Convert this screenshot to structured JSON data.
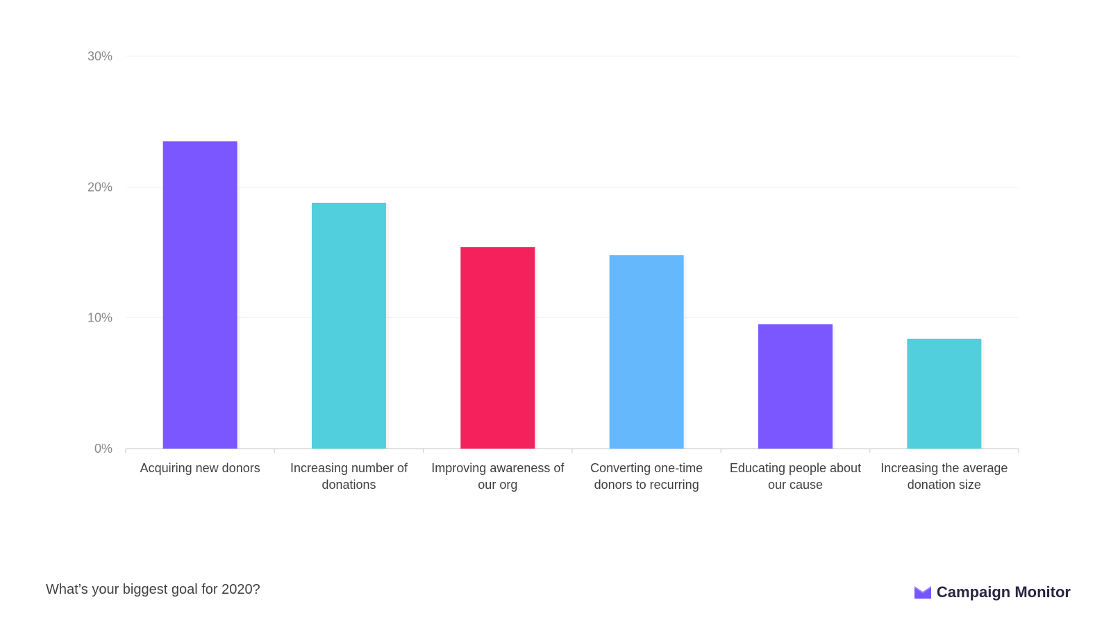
{
  "chart_data": {
    "type": "bar",
    "categories": [
      "Acquiring new donors",
      "Increasing number of donations",
      "Improving awareness of our org",
      "Converting one-time donors to recurring",
      "Educating people about our cause",
      "Increasing the average donation size"
    ],
    "category_label_lines": [
      [
        "Acquiring new donors"
      ],
      [
        "Increasing number of",
        "donations"
      ],
      [
        "Improving awareness of",
        "our org"
      ],
      [
        "Converting one-time",
        "donors to recurring"
      ],
      [
        "Educating people about",
        "our cause"
      ],
      [
        "Increasing the average",
        "donation size"
      ]
    ],
    "values": [
      23.5,
      18.8,
      15.4,
      14.8,
      9.5,
      8.4
    ],
    "bar_colors": [
      "#7a57ff",
      "#52cfdc",
      "#f5215d",
      "#66b8fc",
      "#7a57ff",
      "#52cfdc"
    ],
    "y_ticks": [
      0,
      10,
      20,
      30
    ],
    "y_tick_labels": [
      "0%",
      "10%",
      "20%",
      "30%"
    ],
    "ylim": [
      0,
      30
    ],
    "grid": true,
    "legend": "none",
    "title": "",
    "xlabel": "",
    "ylabel": ""
  },
  "footer": {
    "question": "What’s your biggest goal for 2020?",
    "brand_name": "Campaign Monitor",
    "brand_icon": "envelope-logo-icon",
    "brand_color": "#7856ff"
  }
}
